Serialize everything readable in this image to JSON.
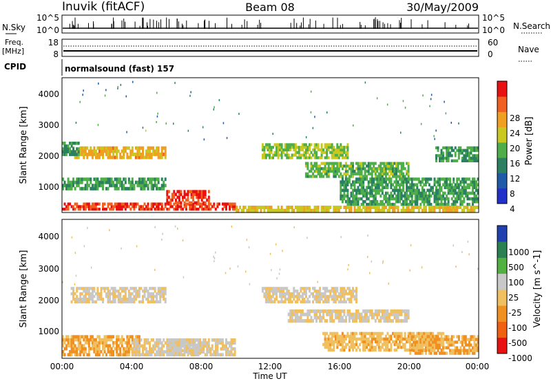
{
  "header": {
    "station": "Inuvik (fitACF)",
    "beam": "Beam 08",
    "date": "30/May/2009"
  },
  "strips": {
    "nsky_label": "N.Sky",
    "nsky_ticks": [
      "10^5",
      "10^0"
    ],
    "nsearch_label": "N.Search",
    "freq_label": "Freq.",
    "freq_unit": "[MHz]",
    "freq_ticks": [
      "18",
      "8"
    ],
    "nave_label": "Nave",
    "nave_ticks": [
      "60",
      "0"
    ],
    "cpid_label": "CPID",
    "cpid_text": "normalsound (fast) 157"
  },
  "axes": {
    "ylabel": "Slant Range [km]",
    "xlabel": "Time UT",
    "y_ticks": [
      "1000",
      "2000",
      "3000",
      "4000"
    ],
    "x_ticks": [
      "00:00",
      "04:00",
      "08:00",
      "12:00",
      "16:00",
      "20:00",
      "00:00"
    ]
  },
  "colorbars": {
    "power_label": "Power [dB]",
    "velocity_label": "Velocity [m s^-1]",
    "power_ticks": [
      "28",
      "24",
      "20",
      "16",
      "12",
      "8",
      "4"
    ],
    "velocity_ticks": [
      "1000",
      "500",
      "100",
      "25",
      "-25",
      "-100",
      "-500",
      "-1000"
    ]
  },
  "chart_data": [
    {
      "type": "heatmap",
      "title": "Power",
      "x": "Time UT",
      "y": "Slant Range [km]",
      "xlim": [
        "00:00",
        "24:00"
      ],
      "ylim": [
        180,
        4500
      ],
      "colorbar": {
        "label": "Power [dB]",
        "range": [
          0,
          32
        ],
        "colors": [
          "#2030c8",
          "#1e5aa8",
          "#2a8060",
          "#4fae4a",
          "#c8c820",
          "#f0a020",
          "#f06020",
          "#e81010"
        ]
      },
      "bands": [
        {
          "t0": 0.0,
          "t1": 10.0,
          "r0": 250,
          "r1": 500,
          "level": 30
        },
        {
          "t0": 6.0,
          "t1": 8.5,
          "r0": 450,
          "r1": 900,
          "level": 30
        },
        {
          "t0": 0.0,
          "t1": 6.0,
          "r0": 900,
          "r1": 1300,
          "level": 12
        },
        {
          "t0": 0.5,
          "t1": 6.0,
          "r0": 1900,
          "r1": 2300,
          "level": 22
        },
        {
          "t0": 0.0,
          "t1": 1.0,
          "r0": 2000,
          "r1": 2450,
          "level": 10
        },
        {
          "t0": 11.5,
          "t1": 16.5,
          "r0": 1900,
          "r1": 2400,
          "level": 16
        },
        {
          "t0": 14.0,
          "t1": 20.0,
          "r0": 1300,
          "r1": 1800,
          "level": 14
        },
        {
          "t0": 16.0,
          "t1": 24.0,
          "r0": 400,
          "r1": 1300,
          "level": 12
        },
        {
          "t0": 10.0,
          "t1": 24.0,
          "r0": 200,
          "r1": 400,
          "level": 20
        },
        {
          "t0": 21.5,
          "t1": 24.0,
          "r0": 1800,
          "r1": 2300,
          "level": 12
        }
      ]
    },
    {
      "type": "heatmap",
      "title": "Velocity",
      "x": "Time UT",
      "y": "Slant Range [km]",
      "xlim": [
        "00:00",
        "24:00"
      ],
      "ylim": [
        180,
        4500
      ],
      "colorbar": {
        "label": "Velocity [m s^-1]",
        "range": [
          -1000,
          1000
        ],
        "colors": [
          "#e81010",
          "#f06010",
          "#f09020",
          "#f0c060",
          "#c8c8c8",
          "#50b040",
          "#2a8050",
          "#2040b0"
        ]
      },
      "bands": [
        {
          "t0": 0.0,
          "t1": 4.5,
          "r0": 250,
          "r1": 900,
          "level": -300
        },
        {
          "t0": 0.5,
          "t1": 6.0,
          "r0": 1900,
          "r1": 2400,
          "level": 0
        },
        {
          "t0": 4.0,
          "t1": 10.0,
          "r0": 250,
          "r1": 800,
          "level": 0
        },
        {
          "t0": 6.0,
          "t1": 8.0,
          "r0": 300,
          "r1": 800,
          "level": 60
        },
        {
          "t0": 11.5,
          "t1": 17.0,
          "r0": 1900,
          "r1": 2400,
          "level": 0
        },
        {
          "t0": 13.0,
          "t1": 20.0,
          "r0": 1300,
          "r1": 1700,
          "level": 0
        },
        {
          "t0": 15.0,
          "t1": 22.0,
          "r0": 400,
          "r1": 1000,
          "level": -200
        },
        {
          "t0": 20.0,
          "t1": 24.0,
          "r0": 300,
          "r1": 900,
          "level": -300
        }
      ]
    }
  ]
}
